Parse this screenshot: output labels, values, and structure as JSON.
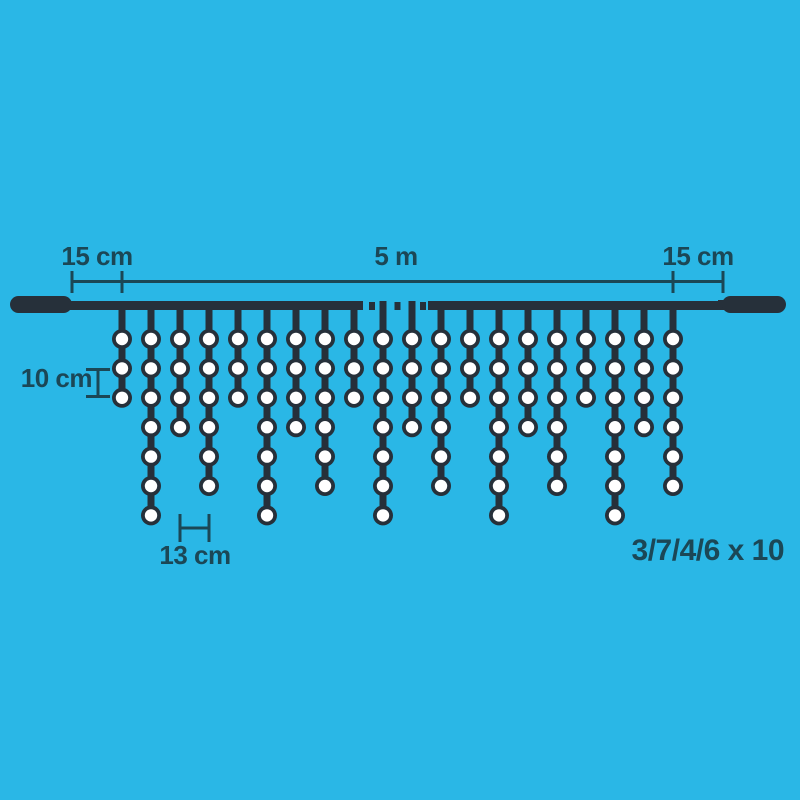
{
  "title": "Icicle light chain dimension diagram",
  "colors": {
    "background": "#2ab7e6",
    "wire": "#26303a",
    "label": "#1b4756",
    "bulb_fill": "#ffffff"
  },
  "labels": {
    "left_margin": "15 cm",
    "span": "5 m",
    "right_margin": "15 cm",
    "bulb_spacing": "10 cm",
    "drop_spacing": "13 cm",
    "pattern": "3/7/4/6 x 10"
  },
  "diagram": {
    "drop_pattern": [
      3,
      7,
      4,
      6
    ],
    "pattern_repeats_label": 10,
    "drops_shown": 20,
    "bulb_counts": [
      3,
      7,
      4,
      6,
      3,
      7,
      4,
      6,
      3,
      7,
      4,
      6,
      3,
      7,
      4,
      6,
      3,
      7,
      4,
      6
    ]
  }
}
